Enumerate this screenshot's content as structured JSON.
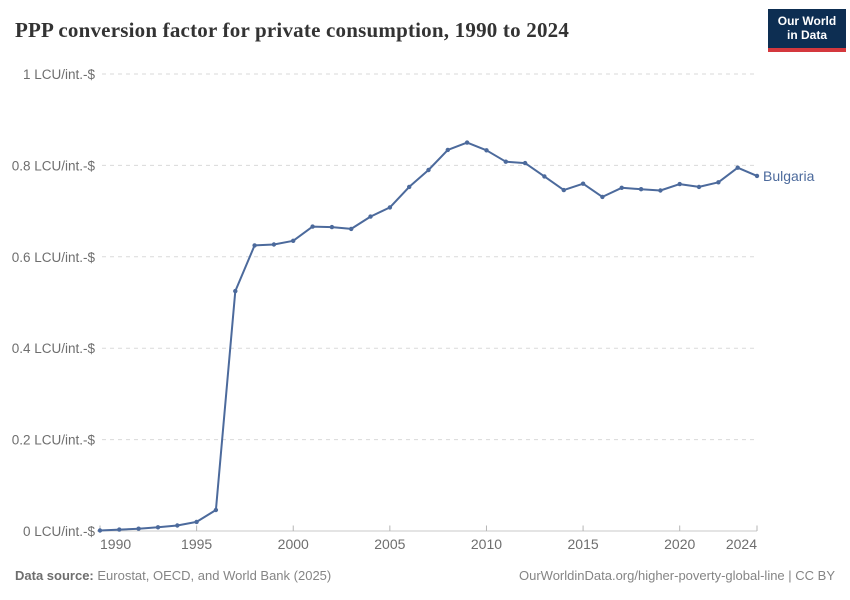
{
  "header": {
    "title": "PPP conversion factor for private consumption, 1990 to 2024",
    "logo_line1": "Our World",
    "logo_line2": "in Data"
  },
  "footer": {
    "source_bold": "Data source:",
    "source_rest": " Eurostat, OECD, and World Bank (2025)",
    "right_text": "OurWorldinData.org/higher-poverty-global-line | CC BY"
  },
  "colors": {
    "line": "#4C6A9C",
    "end_label": "#4C6A9C",
    "grid": "#dadada",
    "axis": "#c8c8c8",
    "tick": "#b5b5b5",
    "tick_text": "#6e6e6e",
    "title_text": "#333333",
    "footer_text": "#858585",
    "footer_bold": "#6e6e6e",
    "logo_bg": "#0d2e52",
    "logo_red": "#d4383d"
  },
  "chart_data": {
    "type": "line",
    "title": "PPP conversion factor for private consumption, 1990 to 2024",
    "xlabel": "",
    "ylabel": "LCU per international-$",
    "xlim": [
      1990,
      2024
    ],
    "ylim": [
      0,
      1
    ],
    "grid": "horizontal dashed",
    "legend_position": "end-of-line label",
    "x": [
      1990,
      1991,
      1992,
      1993,
      1994,
      1995,
      1996,
      1997,
      1998,
      1999,
      2000,
      2001,
      2002,
      2003,
      2004,
      2005,
      2006,
      2007,
      2008,
      2009,
      2010,
      2011,
      2012,
      2013,
      2014,
      2015,
      2016,
      2017,
      2018,
      2019,
      2020,
      2021,
      2022,
      2023,
      2024
    ],
    "series": [
      {
        "name": "Bulgaria",
        "values": [
          0.001,
          0.003,
          0.005,
          0.008,
          0.012,
          0.02,
          0.046,
          0.525,
          0.625,
          0.627,
          0.635,
          0.666,
          0.665,
          0.661,
          0.688,
          0.708,
          0.753,
          0.79,
          0.834,
          0.85,
          0.833,
          0.808,
          0.805,
          0.776,
          0.746,
          0.76,
          0.731,
          0.751,
          0.748,
          0.745,
          0.759,
          0.753,
          0.763,
          0.795,
          0.777
        ]
      }
    ],
    "yticks": [
      {
        "value": 0,
        "label": "0 LCU/int.-$"
      },
      {
        "value": 0.2,
        "label": "0.2 LCU/int.-$"
      },
      {
        "value": 0.4,
        "label": "0.4 LCU/int.-$"
      },
      {
        "value": 0.6,
        "label": "0.6 LCU/int.-$"
      },
      {
        "value": 0.8,
        "label": "0.8 LCU/int.-$"
      },
      {
        "value": 1,
        "label": "1 LCU/int.-$"
      }
    ],
    "xticks": [
      {
        "value": 1990,
        "label": "1990"
      },
      {
        "value": 1995,
        "label": "1995"
      },
      {
        "value": 2000,
        "label": "2000"
      },
      {
        "value": 2005,
        "label": "2005"
      },
      {
        "value": 2010,
        "label": "2010"
      },
      {
        "value": 2015,
        "label": "2015"
      },
      {
        "value": 2020,
        "label": "2020"
      },
      {
        "value": 2024,
        "label": "2024"
      }
    ],
    "end_label": "Bulgaria"
  }
}
